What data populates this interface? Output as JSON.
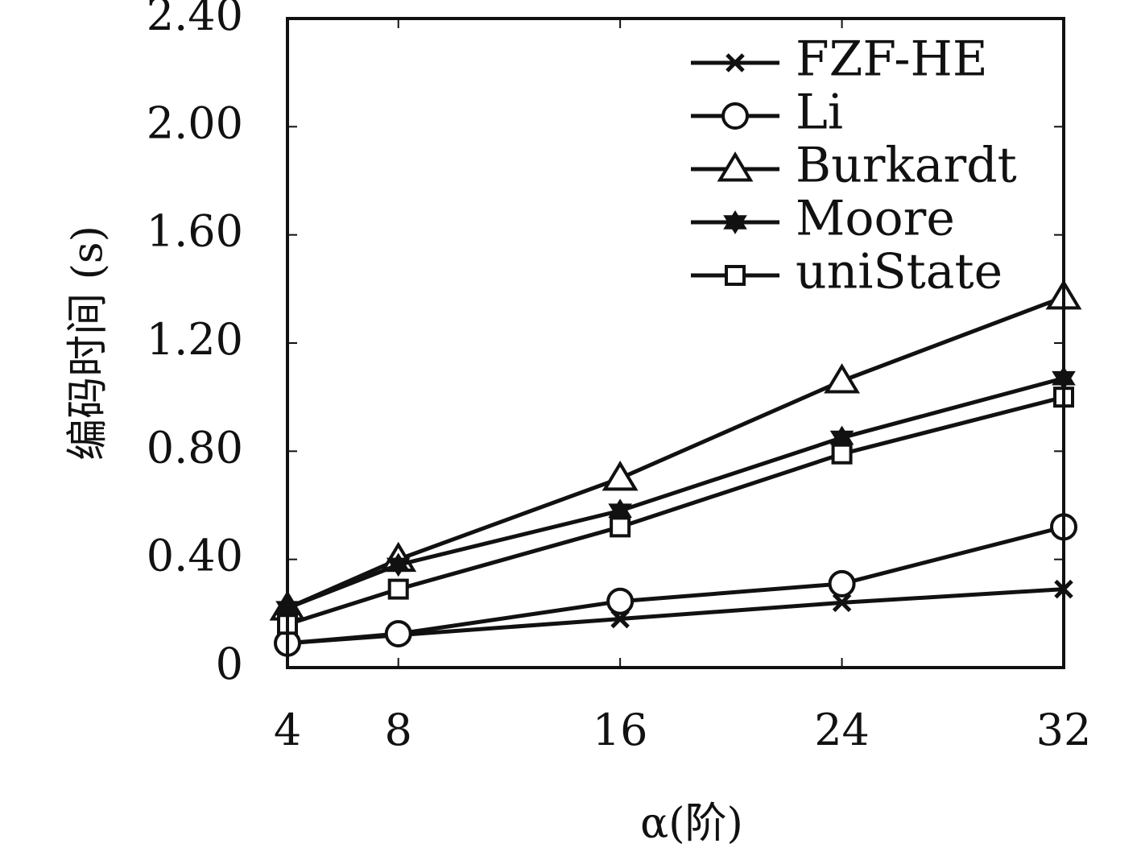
{
  "chart_data": {
    "type": "line",
    "title": "",
    "xlabel": "α(阶)",
    "ylabel": "编码时间 (s)",
    "x": [
      4,
      8,
      16,
      24,
      32
    ],
    "xticks": [
      "4",
      "8",
      "16",
      "24",
      "32"
    ],
    "xlim": [
      4,
      32
    ],
    "yticks": [
      "0",
      "0.40",
      "0.80",
      "1.20",
      "1.60",
      "2.00",
      "2.40"
    ],
    "ytick_values": [
      0,
      0.4,
      0.8,
      1.2,
      1.6,
      2.0,
      2.4
    ],
    "ylim": [
      0,
      2.4
    ],
    "grid": false,
    "legend_position": "top-right",
    "series": [
      {
        "name": "FZF-HE",
        "marker": "x-mark",
        "values": [
          0.09,
          0.12,
          0.18,
          0.24,
          0.29
        ]
      },
      {
        "name": "Li",
        "marker": "circle",
        "values": [
          0.09,
          0.125,
          0.245,
          0.31,
          0.52
        ]
      },
      {
        "name": "Burkardt",
        "marker": "triangle",
        "values": [
          0.22,
          0.4,
          0.7,
          1.06,
          1.37
        ]
      },
      {
        "name": "Moore",
        "marker": "star",
        "values": [
          0.22,
          0.38,
          0.58,
          0.85,
          1.07
        ]
      },
      {
        "name": "uniState",
        "marker": "square",
        "values": [
          0.16,
          0.29,
          0.52,
          0.79,
          1.0
        ]
      }
    ],
    "colors": {
      "line": "#111111",
      "background": "#ffffff"
    }
  }
}
